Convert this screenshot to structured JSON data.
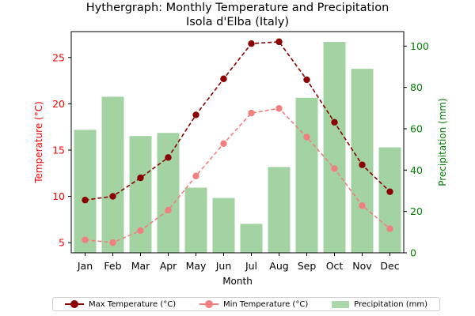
{
  "chart_data": {
    "type": "bar+line",
    "title": "Hythergraph: Monthly Temperature and Precipitation",
    "subtitle": "Isola d'Elba (Italy)",
    "xlabel": "Month",
    "ylabel_left": "Temperature (°C)",
    "ylabel_right": "Precipitation (mm)",
    "categories": [
      "Jan",
      "Feb",
      "Mar",
      "Apr",
      "May",
      "Jun",
      "Jul",
      "Aug",
      "Sep",
      "Oct",
      "Nov",
      "Dec"
    ],
    "ylim_left": [
      3.9,
      27.8
    ],
    "yticks_left": [
      5,
      10,
      15,
      20,
      25
    ],
    "ylim_right": [
      0,
      107
    ],
    "yticks_right": [
      0,
      20,
      40,
      60,
      80,
      100
    ],
    "series": [
      {
        "name": "Max Temperature (°C)",
        "type": "line",
        "axis": "left",
        "color": "#8b0000",
        "dash": "dashed",
        "values": [
          9.6,
          10.0,
          12.0,
          14.2,
          18.8,
          22.7,
          26.5,
          26.7,
          22.6,
          18.0,
          13.4,
          10.5
        ]
      },
      {
        "name": "Min Temperature (°C)",
        "type": "line",
        "axis": "left",
        "color": "#f08080",
        "dash": "dashed",
        "values": [
          5.3,
          5.0,
          6.3,
          8.5,
          12.2,
          15.7,
          19.0,
          19.5,
          16.4,
          13.0,
          9.0,
          6.5
        ]
      },
      {
        "name": "Precipitation (mm)",
        "type": "bar",
        "axis": "right",
        "color": "#a3d3a3",
        "values": [
          59.5,
          75.5,
          56.5,
          58.0,
          31.5,
          26.5,
          14.0,
          41.5,
          75.0,
          102.0,
          89.0,
          51.0
        ]
      }
    ],
    "colors": {
      "left_axis": "#ff0000",
      "right_axis": "#008000"
    },
    "grid": false,
    "legend_position": "bottom-center"
  }
}
